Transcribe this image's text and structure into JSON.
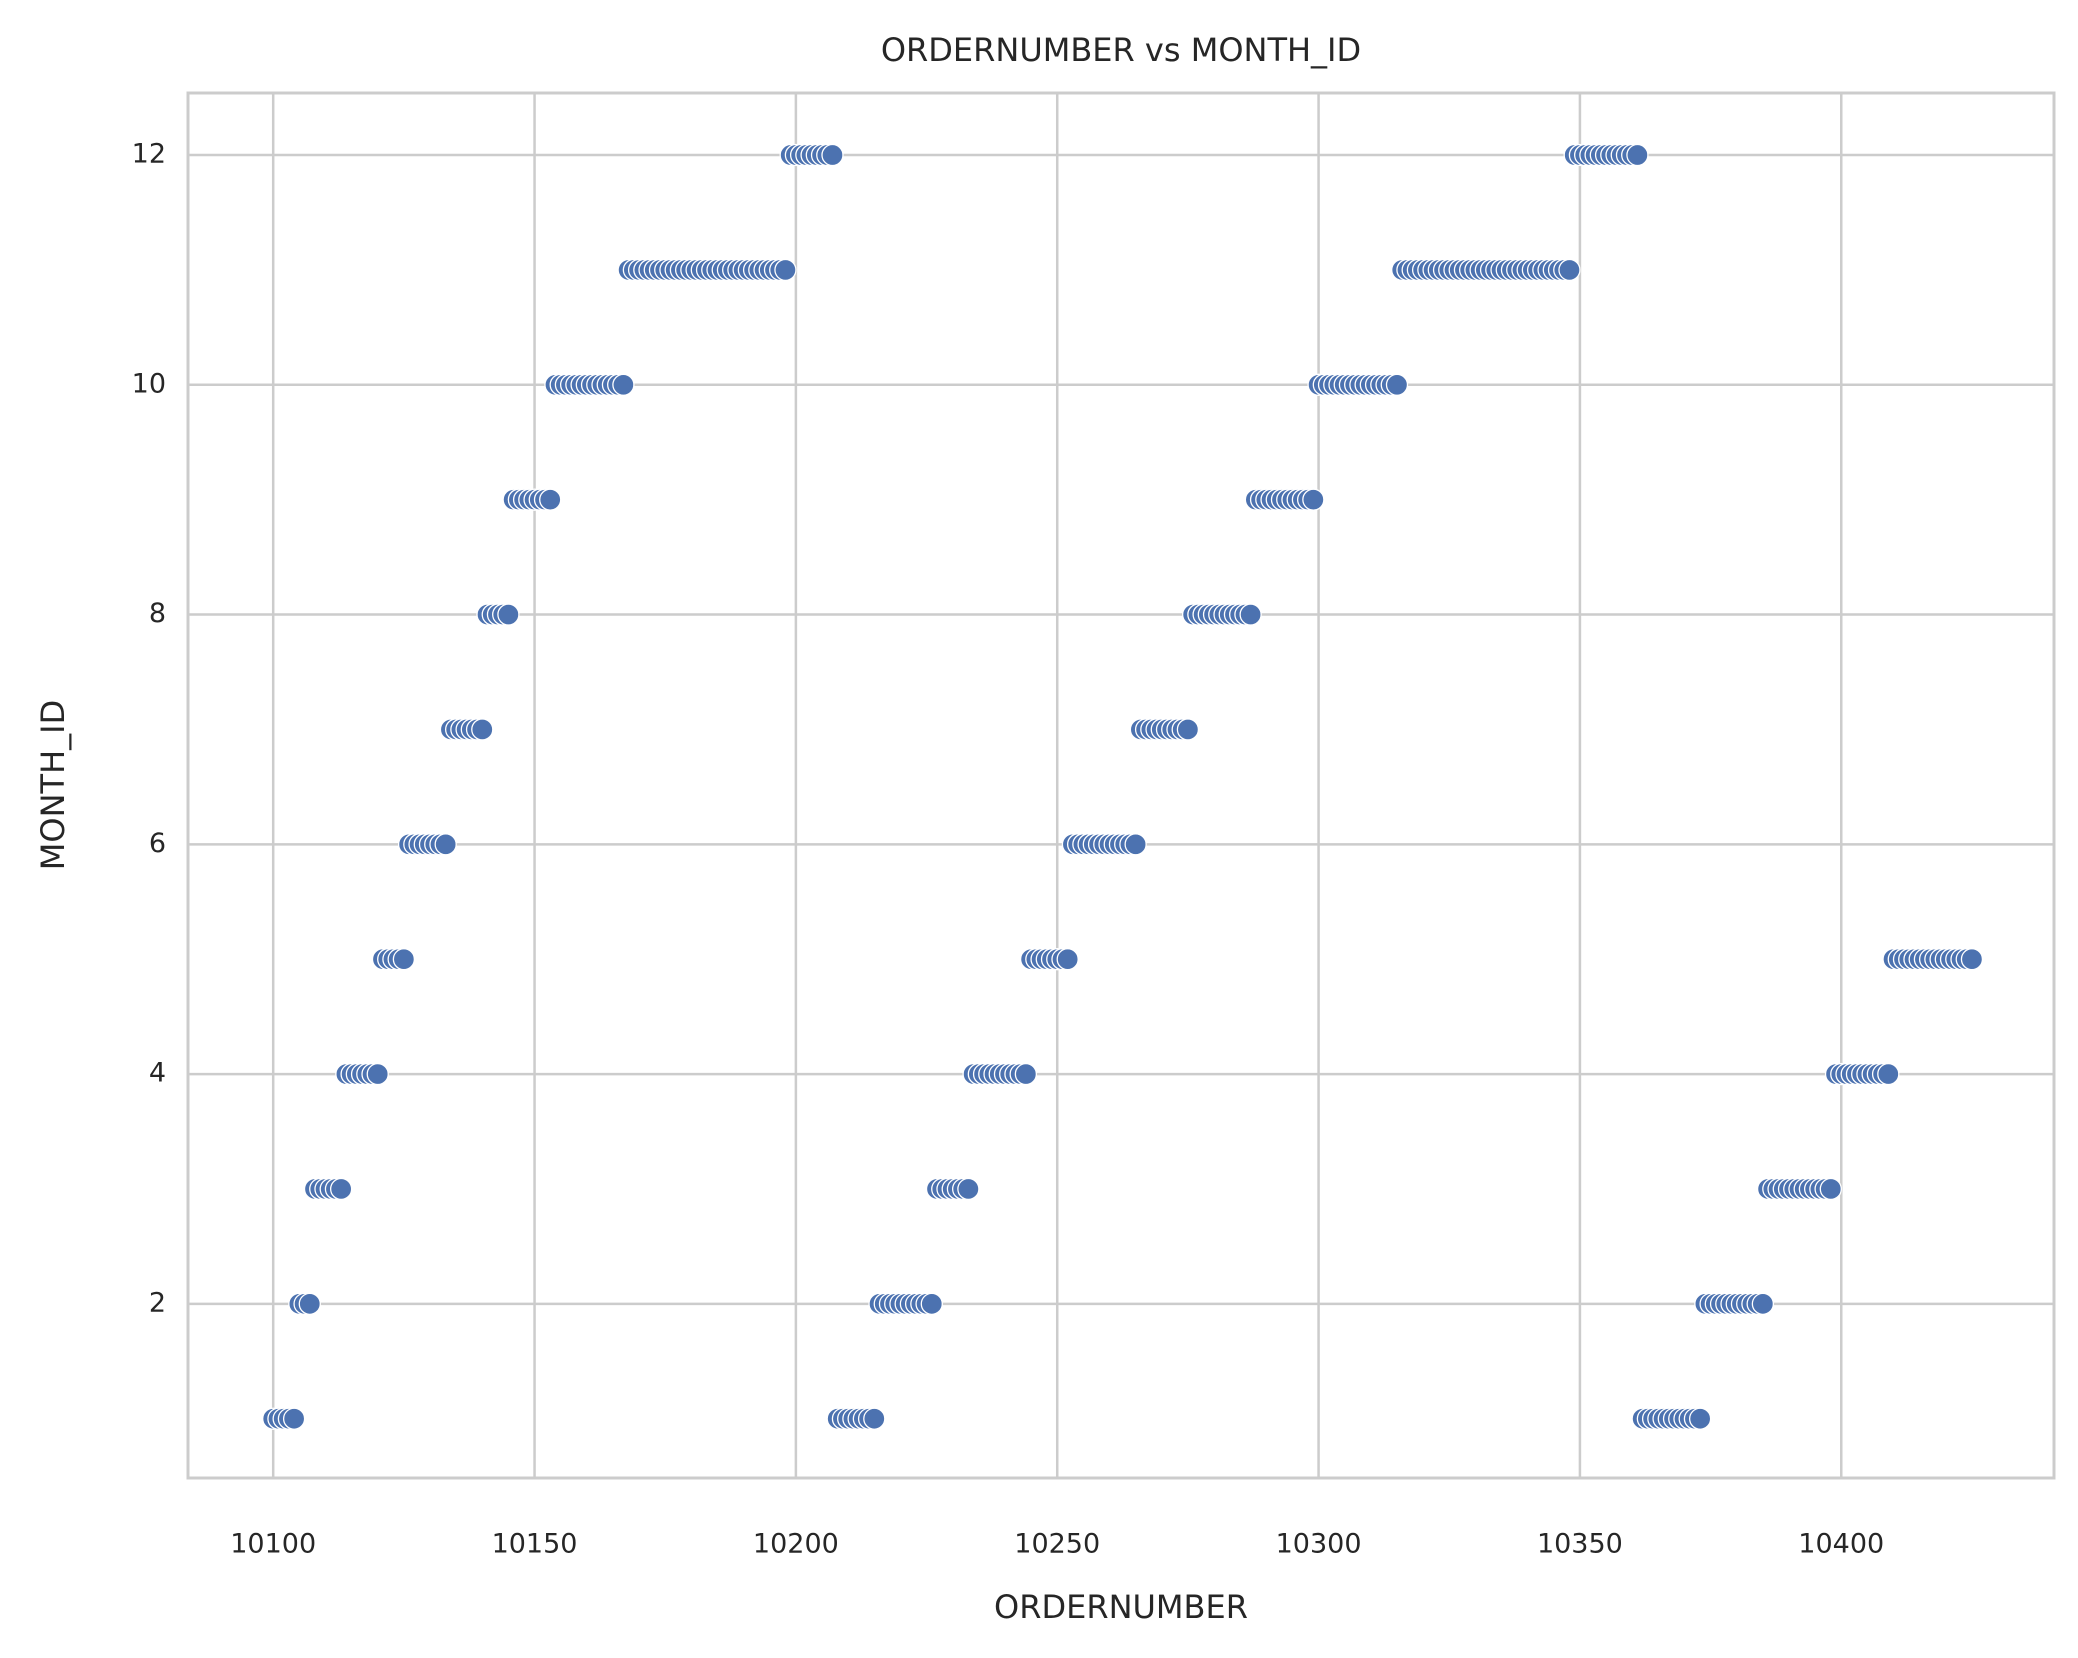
{
  "chart_data": {
    "type": "scatter",
    "title": "ORDERNUMBER vs MONTH_ID",
    "x_label": "ORDERNUMBER",
    "y_label": "MONTH_ID",
    "color": "#4c72b0",
    "grid": true,
    "xlim": [
      10083.7,
      10440.7
    ],
    "ylim": [
      0.484,
      12.54
    ],
    "xticks": [
      10100,
      10150,
      10200,
      10250,
      10300,
      10350,
      10400
    ],
    "yticks": [
      2,
      4,
      6,
      8,
      10,
      12
    ],
    "x": [
      10100,
      10101,
      10102,
      10103,
      10104,
      10105,
      10106,
      10107,
      10108,
      10109,
      10110,
      10111,
      10112,
      10113,
      10114,
      10115,
      10116,
      10117,
      10118,
      10119,
      10120,
      10121,
      10122,
      10123,
      10124,
      10125,
      10126,
      10127,
      10128,
      10129,
      10130,
      10131,
      10132,
      10133,
      10134,
      10135,
      10136,
      10137,
      10138,
      10139,
      10140,
      10141,
      10142,
      10143,
      10144,
      10145,
      10146,
      10147,
      10148,
      10149,
      10150,
      10151,
      10152,
      10153,
      10154,
      10155,
      10156,
      10157,
      10158,
      10159,
      10160,
      10161,
      10162,
      10163,
      10164,
      10165,
      10166,
      10167,
      10168,
      10169,
      10170,
      10171,
      10172,
      10173,
      10174,
      10175,
      10176,
      10177,
      10178,
      10179,
      10180,
      10181,
      10182,
      10183,
      10184,
      10185,
      10186,
      10187,
      10188,
      10189,
      10190,
      10191,
      10192,
      10193,
      10194,
      10195,
      10196,
      10197,
      10198,
      10199,
      10200,
      10201,
      10202,
      10203,
      10204,
      10205,
      10206,
      10207,
      10208,
      10209,
      10210,
      10211,
      10212,
      10213,
      10214,
      10215,
      10216,
      10217,
      10218,
      10219,
      10220,
      10221,
      10222,
      10223,
      10224,
      10225,
      10226,
      10227,
      10228,
      10229,
      10230,
      10231,
      10232,
      10233,
      10234,
      10235,
      10236,
      10237,
      10238,
      10239,
      10240,
      10241,
      10242,
      10243,
      10244,
      10245,
      10246,
      10247,
      10248,
      10249,
      10250,
      10251,
      10252,
      10253,
      10254,
      10255,
      10256,
      10257,
      10258,
      10259,
      10260,
      10261,
      10262,
      10263,
      10264,
      10265,
      10266,
      10267,
      10268,
      10269,
      10270,
      10271,
      10272,
      10273,
      10274,
      10275,
      10276,
      10277,
      10278,
      10279,
      10280,
      10281,
      10282,
      10283,
      10284,
      10285,
      10286,
      10287,
      10288,
      10289,
      10290,
      10291,
      10292,
      10293,
      10294,
      10295,
      10296,
      10297,
      10298,
      10299,
      10300,
      10301,
      10302,
      10303,
      10304,
      10305,
      10306,
      10307,
      10308,
      10309,
      10310,
      10311,
      10312,
      10313,
      10314,
      10315,
      10316,
      10317,
      10318,
      10319,
      10320,
      10321,
      10322,
      10323,
      10324,
      10325,
      10326,
      10327,
      10328,
      10329,
      10330,
      10331,
      10332,
      10333,
      10334,
      10335,
      10336,
      10337,
      10338,
      10339,
      10340,
      10341,
      10342,
      10343,
      10344,
      10345,
      10346,
      10347,
      10348,
      10349,
      10350,
      10351,
      10352,
      10353,
      10354,
      10355,
      10356,
      10357,
      10358,
      10359,
      10360,
      10361,
      10362,
      10363,
      10364,
      10365,
      10366,
      10367,
      10368,
      10369,
      10370,
      10371,
      10372,
      10373,
      10374,
      10375,
      10376,
      10377,
      10378,
      10379,
      10380,
      10381,
      10382,
      10383,
      10384,
      10385,
      10386,
      10387,
      10388,
      10389,
      10390,
      10391,
      10392,
      10393,
      10394,
      10395,
      10396,
      10397,
      10398,
      10399,
      10400,
      10401,
      10402,
      10403,
      10404,
      10405,
      10406,
      10407,
      10408,
      10409,
      10410,
      10411,
      10412,
      10413,
      10414,
      10415,
      10416,
      10417,
      10418,
      10419,
      10420,
      10421,
      10422,
      10423,
      10424,
      10425
    ],
    "values": [
      1,
      1,
      1,
      1,
      1,
      2,
      2,
      2,
      3,
      3,
      3,
      3,
      3,
      3,
      4,
      4,
      4,
      4,
      4,
      4,
      4,
      5,
      5,
      5,
      5,
      5,
      6,
      6,
      6,
      6,
      6,
      6,
      6,
      6,
      7,
      7,
      7,
      7,
      7,
      7,
      7,
      8,
      8,
      8,
      8,
      8,
      9,
      9,
      9,
      9,
      9,
      9,
      9,
      9,
      10,
      10,
      10,
      10,
      10,
      10,
      10,
      10,
      10,
      10,
      10,
      10,
      10,
      10,
      11,
      11,
      11,
      11,
      11,
      11,
      11,
      11,
      11,
      11,
      11,
      11,
      11,
      11,
      11,
      11,
      11,
      11,
      11,
      11,
      11,
      11,
      11,
      11,
      11,
      11,
      11,
      11,
      11,
      11,
      11,
      12,
      12,
      12,
      12,
      12,
      12,
      12,
      12,
      12,
      1,
      1,
      1,
      1,
      1,
      1,
      1,
      1,
      2,
      2,
      2,
      2,
      2,
      2,
      2,
      2,
      2,
      2,
      2,
      3,
      3,
      3,
      3,
      3,
      3,
      3,
      4,
      4,
      4,
      4,
      4,
      4,
      4,
      4,
      4,
      4,
      4,
      5,
      5,
      5,
      5,
      5,
      5,
      5,
      5,
      6,
      6,
      6,
      6,
      6,
      6,
      6,
      6,
      6,
      6,
      6,
      6,
      6,
      7,
      7,
      7,
      7,
      7,
      7,
      7,
      7,
      7,
      7,
      8,
      8,
      8,
      8,
      8,
      8,
      8,
      8,
      8,
      8,
      8,
      8,
      9,
      9,
      9,
      9,
      9,
      9,
      9,
      9,
      9,
      9,
      9,
      9,
      10,
      10,
      10,
      10,
      10,
      10,
      10,
      10,
      10,
      10,
      10,
      10,
      10,
      10,
      10,
      10,
      11,
      11,
      11,
      11,
      11,
      11,
      11,
      11,
      11,
      11,
      11,
      11,
      11,
      11,
      11,
      11,
      11,
      11,
      11,
      11,
      11,
      11,
      11,
      11,
      11,
      11,
      11,
      11,
      11,
      11,
      11,
      11,
      11,
      12,
      12,
      12,
      12,
      12,
      12,
      12,
      12,
      12,
      12,
      12,
      12,
      12,
      1,
      1,
      1,
      1,
      1,
      1,
      1,
      1,
      1,
      1,
      1,
      1,
      2,
      2,
      2,
      2,
      2,
      2,
      2,
      2,
      2,
      2,
      2,
      2,
      3,
      3,
      3,
      3,
      3,
      3,
      3,
      3,
      3,
      3,
      3,
      3,
      3,
      4,
      4,
      4,
      4,
      4,
      4,
      4,
      4,
      4,
      4,
      4,
      5,
      5,
      5,
      5,
      5,
      5,
      5,
      5,
      5,
      5,
      5,
      5,
      5,
      5,
      5,
      5
    ]
  }
}
